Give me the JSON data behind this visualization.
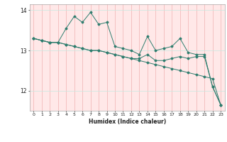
{
  "xlabel": "Humidex (Indice chaleur)",
  "x": [
    0,
    1,
    2,
    3,
    4,
    5,
    6,
    7,
    8,
    9,
    10,
    11,
    12,
    13,
    14,
    15,
    16,
    17,
    18,
    19,
    20,
    21,
    22,
    23
  ],
  "line1": [
    13.3,
    13.25,
    13.2,
    13.2,
    13.55,
    13.85,
    13.7,
    13.95,
    13.65,
    13.7,
    13.1,
    13.05,
    13.0,
    12.9,
    13.35,
    13.0,
    13.05,
    13.1,
    13.3,
    12.95,
    12.9,
    12.9,
    12.1,
    11.65
  ],
  "line2": [
    13.3,
    13.25,
    13.2,
    13.2,
    13.15,
    13.1,
    13.05,
    13.0,
    13.0,
    12.95,
    12.9,
    12.85,
    12.8,
    12.75,
    12.7,
    12.65,
    12.6,
    12.55,
    12.5,
    12.45,
    12.4,
    12.35,
    12.3,
    11.65
  ],
  "line3": [
    13.3,
    13.25,
    13.2,
    13.2,
    13.15,
    13.1,
    13.05,
    13.0,
    13.0,
    12.95,
    12.9,
    12.85,
    12.8,
    12.8,
    12.9,
    12.75,
    12.75,
    12.8,
    12.85,
    12.8,
    12.85,
    12.85,
    12.1,
    11.65
  ],
  "line_color": "#2e7d6e",
  "bg_color": "#ffffff",
  "plot_bg_color": "#ffe8e8",
  "grid_color_v": "#f0b0b0",
  "grid_color_h": "#c8e8e0",
  "ylim": [
    11.5,
    14.15
  ],
  "yticks": [
    12,
    13,
    14
  ],
  "xtick_labels": [
    "0",
    "1",
    "2",
    "3",
    "4",
    "5",
    "6",
    "7",
    "8",
    "9",
    "10",
    "11",
    "12",
    "13",
    "14",
    "15",
    "16",
    "17",
    "18",
    "19",
    "20",
    "21",
    "22",
    "23"
  ]
}
